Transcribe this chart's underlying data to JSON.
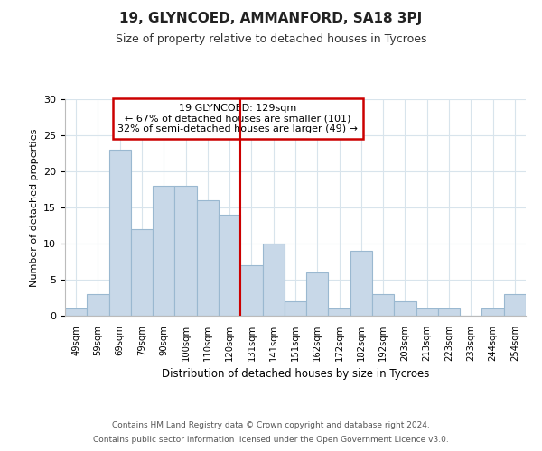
{
  "title": "19, GLYNCOED, AMMANFORD, SA18 3PJ",
  "subtitle": "Size of property relative to detached houses in Tycroes",
  "xlabel": "Distribution of detached houses by size in Tycroes",
  "ylabel": "Number of detached properties",
  "bar_color": "#c8d8e8",
  "bar_edge_color": "#9ab8d0",
  "categories": [
    "49sqm",
    "59sqm",
    "69sqm",
    "79sqm",
    "90sqm",
    "100sqm",
    "110sqm",
    "120sqm",
    "131sqm",
    "141sqm",
    "151sqm",
    "162sqm",
    "172sqm",
    "182sqm",
    "192sqm",
    "203sqm",
    "213sqm",
    "223sqm",
    "233sqm",
    "244sqm",
    "254sqm"
  ],
  "values": [
    1,
    3,
    23,
    12,
    18,
    18,
    16,
    14,
    7,
    10,
    2,
    6,
    1,
    9,
    3,
    2,
    1,
    1,
    0,
    1,
    3
  ],
  "ylim": [
    0,
    30
  ],
  "yticks": [
    0,
    5,
    10,
    15,
    20,
    25,
    30
  ],
  "vline_x_index": 8,
  "vline_color": "#cc0000",
  "annotation_title": "19 GLYNCOED: 129sqm",
  "annotation_line1": "← 67% of detached houses are smaller (101)",
  "annotation_line2": "32% of semi-detached houses are larger (49) →",
  "annotation_box_color": "#ffffff",
  "annotation_box_edge": "#cc0000",
  "footer1": "Contains HM Land Registry data © Crown copyright and database right 2024.",
  "footer2": "Contains public sector information licensed under the Open Government Licence v3.0.",
  "background_color": "#ffffff",
  "grid_color": "#d8e4ec"
}
